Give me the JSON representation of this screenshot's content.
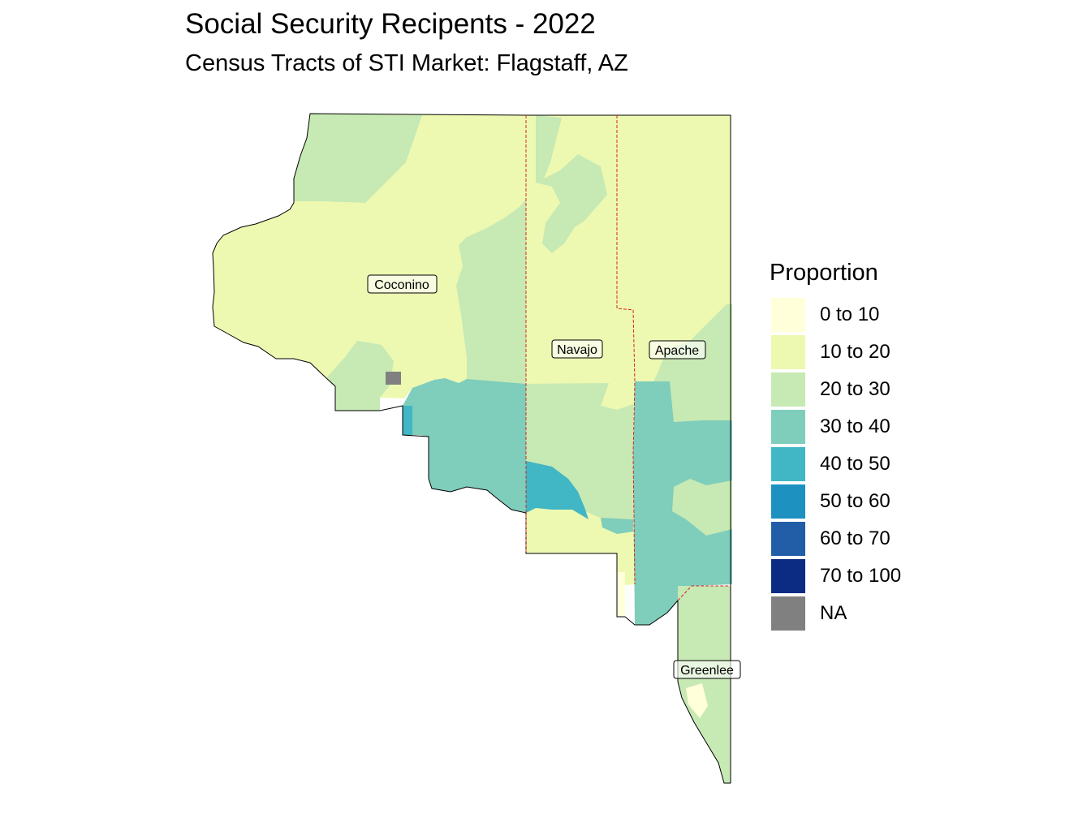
{
  "title": "Social Security Recipents - 2022",
  "subtitle": "Census Tracts of STI Market: Flagstaff, AZ",
  "legend": {
    "title": "Proportion",
    "items": [
      {
        "label": "0 to 10",
        "color": "#FFFFD9"
      },
      {
        "label": "10 to 20",
        "color": "#EDF8B1"
      },
      {
        "label": "20 to 30",
        "color": "#C7E9B4"
      },
      {
        "label": "30 to 40",
        "color": "#7FCDBB"
      },
      {
        "label": "40 to 50",
        "color": "#41B6C4"
      },
      {
        "label": "50 to 60",
        "color": "#1D91C0"
      },
      {
        "label": "60 to 70",
        "color": "#225EA8"
      },
      {
        "label": "70 to 100",
        "color": "#0C2C84"
      },
      {
        "label": "NA",
        "color": "#808080"
      }
    ]
  },
  "counties": {
    "coconino": "Coconino",
    "navajo": "Navajo",
    "apache": "Apache",
    "greenlee": "Greenlee"
  }
}
